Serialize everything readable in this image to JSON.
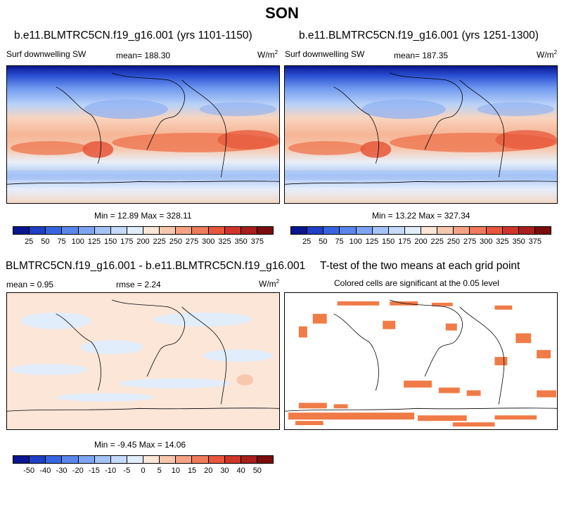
{
  "figure": {
    "title": "SON"
  },
  "colors": {
    "seq": [
      "#0a1690",
      "#1f3fc4",
      "#3764e0",
      "#5a86ec",
      "#7ea5f1",
      "#a4c3f6",
      "#c6dbfb",
      "#e2edfb",
      "#fbe6d8",
      "#f8c8ae",
      "#f4a283",
      "#ef7b5c",
      "#e8573b",
      "#d0352a",
      "#a91f1e",
      "#7a0d0d"
    ],
    "diff": [
      "#0a1690",
      "#1f3fc4",
      "#3764e0",
      "#5a86ec",
      "#7ea5f1",
      "#a4c3f6",
      "#c6dbfb",
      "#e2edfb",
      "#fbe6d8",
      "#f8c8ae",
      "#f4a283",
      "#ef7b5c",
      "#e8573b",
      "#d0352a",
      "#a91f1e",
      "#7a0d0d"
    ],
    "signif": "#f07b47"
  },
  "panel1": {
    "title": "b.e11.BLMTRC5CN.f19_g16.001 (yrs 1101-1150)",
    "var": "Surf downwelling SW",
    "mean": "mean= 188.30",
    "units": "W/m",
    "units_sup": "2",
    "minmax": "Min = 12.89 Max = 328.11"
  },
  "panel2": {
    "title": "b.e11.BLMTRC5CN.f19_g16.001 (yrs 1251-1300)",
    "var": "Surf downwelling SW",
    "mean": "mean= 187.35",
    "units": "W/m",
    "units_sup": "2",
    "minmax": "Min = 13.22 Max = 327.34"
  },
  "panel3": {
    "title": "BLMTRC5CN.f19_g16.001 - b.e11.BLMTRC5CN.f19_g16.001",
    "mean": "mean = 0.95",
    "rmse": "rmse = 2.24",
    "units": "W/m",
    "units_sup": "2",
    "minmax": "Min = -9.45 Max = 14.06"
  },
  "panel4": {
    "title": "T-test of the two means at each grid point",
    "subtitle": "Colored cells are significant at the 0.05 level"
  },
  "colorbar_seq": {
    "labels": [
      "25",
      "50",
      "75",
      "100",
      "125",
      "150",
      "175",
      "200",
      "225",
      "250",
      "275",
      "300",
      "325",
      "350",
      "375"
    ]
  },
  "colorbar_diff": {
    "labels": [
      "-50",
      "-40",
      "-30",
      "-20",
      "-15",
      "-10",
      "-5",
      "0",
      "5",
      "10",
      "15",
      "20",
      "30",
      "40",
      "50"
    ]
  }
}
